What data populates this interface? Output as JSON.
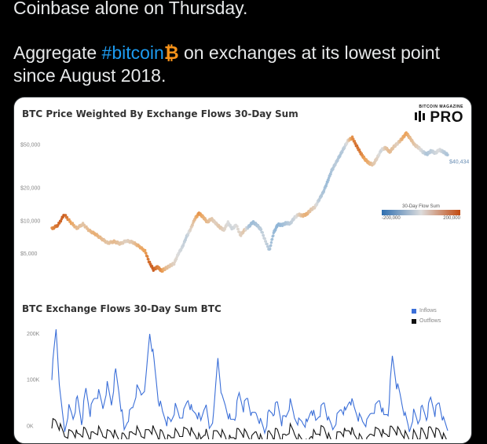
{
  "tweet": {
    "line1": "Coinbase alone on Thursday.",
    "line2_before": "Aggregate ",
    "hashtag": "#bitcoin",
    "emoji": "₿",
    "line2_after": " on exchanges at its lowest point",
    "line3": "since August 2018."
  },
  "card": {
    "logo_small": "BITCOIN MAGAZINE",
    "logo_big": "PRO"
  },
  "chart_data": [
    {
      "type": "scatter",
      "title": "BTC Price Weighted By Exchange Flows 30-Day Sum",
      "yscale": "log",
      "ylim": [
        3000,
        70000
      ],
      "yticks": [
        {
          "value": 50000,
          "label": "$50,000"
        },
        {
          "value": 20000,
          "label": "$20,000"
        },
        {
          "value": 10000,
          "label": "$10,000"
        },
        {
          "value": 5000,
          "label": "$5,000"
        }
      ],
      "last_value_label": "$40,434",
      "colorbar": {
        "title": "30-Day Flow Sum",
        "min_label": "-200,000",
        "max_label": "200,000",
        "low_color": "#2f6fb0",
        "mid_color": "#dcdcdc",
        "high_color": "#c24a10"
      },
      "points": [
        [
          0,
          8500,
          0.6
        ],
        [
          3,
          9200,
          0.8
        ],
        [
          6,
          11500,
          0.9
        ],
        [
          9,
          9800,
          0.5
        ],
        [
          12,
          8600,
          0.3
        ],
        [
          15,
          9400,
          0.2
        ],
        [
          18,
          8200,
          0.3
        ],
        [
          21,
          7600,
          0.4
        ],
        [
          24,
          6900,
          0.3
        ],
        [
          27,
          6300,
          0.2
        ],
        [
          30,
          6500,
          0.3
        ],
        [
          33,
          6200,
          0.2
        ],
        [
          36,
          6600,
          0.1
        ],
        [
          39,
          6400,
          0.2
        ],
        [
          42,
          5900,
          0.4
        ],
        [
          45,
          5300,
          0.5
        ],
        [
          47,
          4200,
          0.8
        ],
        [
          49,
          3600,
          0.9
        ],
        [
          51,
          3800,
          0.7
        ],
        [
          53,
          3500,
          0.6
        ],
        [
          55,
          3700,
          0.3
        ],
        [
          57,
          3900,
          0.2
        ],
        [
          59,
          4100,
          0.1
        ],
        [
          61,
          5000,
          0.0
        ],
        [
          63,
          5800,
          -0.1
        ],
        [
          65,
          7200,
          -0.2
        ],
        [
          67,
          8500,
          0.1
        ],
        [
          69,
          10500,
          0.3
        ],
        [
          71,
          11800,
          0.6
        ],
        [
          73,
          10900,
          0.4
        ],
        [
          75,
          9800,
          0.3
        ],
        [
          77,
          10500,
          0.2
        ],
        [
          79,
          9600,
          0.1
        ],
        [
          81,
          8800,
          0.2
        ],
        [
          83,
          8300,
          0.1
        ],
        [
          85,
          9700,
          0.0
        ],
        [
          87,
          8500,
          -0.1
        ],
        [
          89,
          9200,
          0.0
        ],
        [
          91,
          7400,
          0.1
        ],
        [
          93,
          8300,
          0.2
        ],
        [
          95,
          8900,
          -0.3
        ],
        [
          97,
          9800,
          -0.4
        ],
        [
          99,
          9200,
          -0.3
        ],
        [
          101,
          8300,
          -0.2
        ],
        [
          103,
          6600,
          -0.1
        ],
        [
          105,
          5400,
          -0.3
        ],
        [
          107,
          7800,
          -0.4
        ],
        [
          109,
          9300,
          -0.5
        ],
        [
          111,
          9200,
          -0.4
        ],
        [
          113,
          9600,
          -0.3
        ],
        [
          115,
          9500,
          -0.2
        ],
        [
          117,
          10700,
          -0.1
        ],
        [
          119,
          11500,
          0.1
        ],
        [
          121,
          11200,
          0.3
        ],
        [
          123,
          11600,
          0.4
        ],
        [
          125,
          12700,
          0.2
        ],
        [
          127,
          13500,
          0.1
        ],
        [
          129,
          15800,
          -0.2
        ],
        [
          131,
          18500,
          -0.3
        ],
        [
          133,
          23000,
          -0.4
        ],
        [
          135,
          29000,
          -0.3
        ],
        [
          137,
          34000,
          -0.2
        ],
        [
          139,
          40000,
          -0.3
        ],
        [
          141,
          47000,
          -0.2
        ],
        [
          143,
          55000,
          0.1
        ],
        [
          145,
          58000,
          0.6
        ],
        [
          147,
          49000,
          0.8
        ],
        [
          149,
          42000,
          0.7
        ],
        [
          151,
          37000,
          0.5
        ],
        [
          153,
          34000,
          0.4
        ],
        [
          155,
          33000,
          0.2
        ],
        [
          157,
          38000,
          0.1
        ],
        [
          159,
          45000,
          -0.1
        ],
        [
          161,
          47000,
          0.2
        ],
        [
          163,
          43000,
          0.3
        ],
        [
          165,
          48000,
          0.2
        ],
        [
          167,
          52000,
          0.1
        ],
        [
          169,
          57000,
          0.4
        ],
        [
          171,
          64000,
          0.5
        ],
        [
          173,
          57000,
          0.3
        ],
        [
          175,
          50000,
          0.2
        ],
        [
          177,
          47000,
          0.1
        ],
        [
          179,
          43000,
          -0.1
        ],
        [
          181,
          41000,
          -0.3
        ],
        [
          183,
          44000,
          -0.2
        ],
        [
          185,
          42000,
          -0.1
        ],
        [
          187,
          45000,
          0.0
        ],
        [
          189,
          43000,
          -0.2
        ],
        [
          191,
          40434,
          -0.3
        ]
      ]
    },
    {
      "type": "line",
      "title": "BTC Exchange Flows 30-Day Sum BTC",
      "ylim": [
        -20000,
        210000
      ],
      "yticks": [
        {
          "value": 200000,
          "label": "200K"
        },
        {
          "value": 100000,
          "label": "100K"
        },
        {
          "value": 0,
          "label": "0K"
        }
      ],
      "series": [
        {
          "name": "Inflows",
          "color": "#3b6fd8",
          "values": [
            110000,
            210000,
            60000,
            -10000,
            40000,
            20000,
            60000,
            10000,
            80000,
            30000,
            60000,
            70000,
            40000,
            90000,
            50000,
            120000,
            60000,
            -10000,
            20000,
            40000,
            80000,
            70000,
            90000,
            205000,
            140000,
            60000,
            30000,
            10000,
            10000,
            40000,
            20000,
            30000,
            60000,
            30000,
            30000,
            10000,
            50000,
            -5000,
            20000,
            150000,
            60000,
            40000,
            10000,
            20000,
            70000,
            40000,
            60000,
            20000,
            30000,
            10000,
            -10000,
            30000,
            30000,
            50000,
            10000,
            20000,
            50000,
            20000,
            10000,
            10000,
            5000,
            40000,
            10000,
            30000,
            50000,
            10000,
            -5000,
            20000,
            40000,
            30000,
            60000,
            40000,
            20000,
            10000,
            5000,
            30000,
            40000,
            60000,
            20000,
            30000,
            150000,
            90000,
            60000,
            20000,
            -10000,
            30000,
            10000,
            40000,
            20000,
            60000,
            30000,
            50000,
            10000,
            -10000
          ]
        },
        {
          "name": "Outflows",
          "color": "#111111",
          "values": [
            5000,
            10000,
            -5000,
            -20000,
            -15000,
            -10000,
            -20000,
            -15000,
            -10000,
            -25000,
            -15000,
            -10000,
            -20000,
            -15000,
            -10000,
            -20000,
            -30000,
            -20000,
            -25000,
            -15000,
            -10000,
            -20000,
            -15000,
            -5000,
            -10000,
            -20000,
            -15000,
            -30000,
            -25000,
            -15000,
            -20000,
            -10000,
            -5000,
            -15000,
            -20000,
            -30000,
            -10000,
            -35000,
            -20000,
            -10000,
            -15000,
            -25000,
            -30000,
            -20000,
            -10000,
            -15000,
            -20000,
            -30000,
            -10000,
            -25000,
            -40000,
            -15000,
            -20000,
            -10000,
            -30000,
            -20000,
            -5000,
            -15000,
            -25000,
            -30000,
            -40000,
            -15000,
            -20000,
            -10000,
            -5000,
            -25000,
            -40000,
            -20000,
            -10000,
            -15000,
            -5000,
            -20000,
            -25000,
            -30000,
            -35000,
            -15000,
            -10000,
            -5000,
            -20000,
            -15000,
            -5000,
            -10000,
            -15000,
            -20000,
            -30000,
            -15000,
            -25000,
            -10000,
            -20000,
            -5000,
            -15000,
            -10000,
            -25000,
            -35000
          ]
        }
      ]
    }
  ]
}
